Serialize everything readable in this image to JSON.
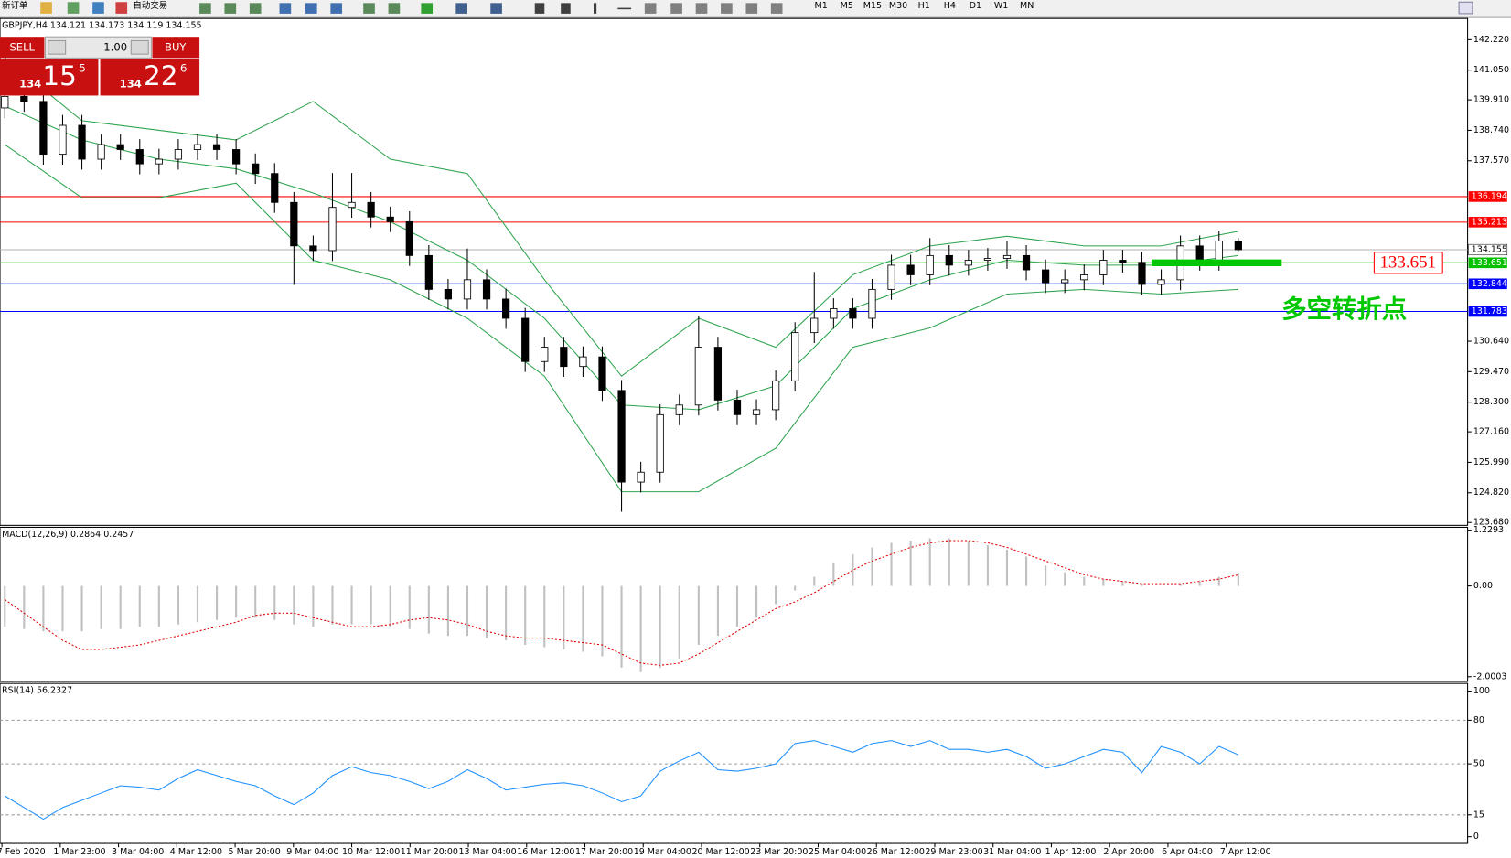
{
  "toolbar": {
    "new_order": "新订单",
    "auto_trading": "自动交易",
    "timeframes": [
      "M1",
      "M5",
      "M15",
      "M30",
      "H1",
      "H4",
      "D1",
      "W1",
      "MN"
    ]
  },
  "trade_panel": {
    "sell": "SELL",
    "buy": "BUY",
    "lot": "1.00",
    "sell_price": [
      "134",
      "15",
      "5"
    ],
    "buy_price": [
      "134",
      "22",
      "6"
    ]
  },
  "chart_data": [
    {
      "type": "candlestick",
      "title": "GBPJPY,H4",
      "ohlc_header": [
        134.121,
        134.173,
        134.119,
        134.155
      ],
      "open": [
        139.6,
        140.04,
        139.85,
        137.82,
        138.93,
        137.63,
        138.19,
        138.0,
        137.45,
        137.63,
        138.0,
        138.19,
        138.0,
        137.45,
        137.08,
        135.97,
        134.3,
        134.12,
        135.78,
        135.97,
        135.41,
        135.23,
        133.93,
        132.63,
        132.26,
        133.0,
        132.26,
        131.52,
        129.86,
        130.41,
        129.67,
        130.04,
        128.75,
        125.23,
        125.61,
        127.82,
        128.19,
        130.41,
        128.38,
        127.82,
        128.01,
        129.12,
        130.97,
        131.52,
        131.89,
        131.52,
        132.63,
        133.56,
        133.19,
        133.93,
        133.56,
        133.75,
        133.82,
        133.93,
        133.38,
        132.89,
        133.0,
        133.19,
        133.75,
        133.67,
        132.82,
        133.0,
        134.3,
        133.75,
        134.49
      ],
      "high": [
        140.44,
        140.44,
        140.25,
        139.33,
        139.33,
        138.59,
        138.59,
        138.4,
        138.03,
        138.4,
        138.59,
        138.59,
        138.4,
        137.85,
        137.48,
        136.37,
        134.7,
        137.1,
        137.1,
        136.37,
        135.81,
        135.63,
        134.33,
        133.03,
        134.2,
        133.4,
        132.66,
        131.92,
        130.81,
        130.81,
        130.44,
        130.44,
        129.15,
        126.01,
        128.22,
        128.59,
        131.6,
        130.81,
        128.78,
        128.41,
        129.52,
        131.37,
        133.3,
        132.29,
        132.29,
        133.03,
        133.96,
        133.96,
        134.6,
        134.33,
        134.15,
        134.22,
        134.5,
        134.33,
        133.78,
        133.4,
        133.59,
        134.15,
        134.15,
        134.07,
        133.4,
        134.7,
        134.7,
        134.89,
        134.6
      ],
      "low": [
        139.2,
        139.45,
        137.42,
        137.42,
        137.23,
        137.23,
        137.6,
        137.05,
        137.05,
        137.23,
        137.6,
        137.6,
        137.05,
        136.68,
        135.57,
        132.8,
        133.72,
        133.72,
        135.38,
        135.01,
        134.83,
        133.53,
        132.23,
        131.86,
        131.86,
        131.86,
        131.12,
        129.46,
        129.46,
        129.27,
        129.27,
        128.35,
        124.09,
        124.83,
        125.21,
        127.42,
        127.79,
        127.98,
        127.42,
        127.42,
        127.61,
        128.72,
        130.57,
        131.12,
        131.12,
        131.12,
        132.23,
        132.79,
        132.79,
        133.16,
        133.16,
        133.35,
        133.42,
        132.98,
        132.49,
        132.49,
        132.6,
        132.79,
        133.27,
        132.42,
        132.42,
        132.6,
        133.35,
        133.35,
        134.1
      ],
      "close": [
        140.04,
        139.85,
        137.82,
        138.93,
        137.63,
        138.19,
        138.0,
        137.45,
        137.63,
        138.0,
        138.19,
        138.0,
        137.45,
        137.08,
        135.97,
        134.3,
        134.12,
        135.78,
        135.97,
        135.41,
        135.23,
        133.93,
        132.63,
        132.26,
        133.0,
        132.26,
        131.52,
        129.86,
        130.41,
        129.67,
        130.04,
        128.75,
        125.23,
        125.61,
        127.82,
        128.19,
        130.41,
        128.38,
        127.82,
        128.01,
        129.12,
        130.97,
        131.52,
        131.89,
        131.52,
        132.63,
        133.56,
        133.19,
        133.93,
        133.56,
        133.75,
        133.82,
        133.93,
        133.38,
        132.89,
        133.0,
        133.19,
        133.75,
        133.67,
        132.82,
        133.0,
        134.3,
        133.75,
        134.49,
        134.155
      ],
      "bands": {
        "color": "#2ea44f",
        "x": [
          0,
          4,
          8,
          12,
          16,
          20,
          24,
          28,
          32,
          36,
          40,
          44,
          48,
          52,
          56,
          60,
          64
        ],
        "upper": [
          141.52,
          139.11,
          138.74,
          138.37,
          139.85,
          137.63,
          137.08,
          133.0,
          129.3,
          131.52,
          130.41,
          133.19,
          134.3,
          134.67,
          134.3,
          134.3,
          134.86
        ],
        "middle": [
          139.67,
          138.37,
          137.63,
          137.26,
          136.33,
          135.23,
          133.75,
          131.52,
          128.19,
          128.01,
          128.93,
          131.89,
          133.0,
          133.75,
          133.56,
          133.56,
          133.93
        ],
        "lower": [
          138.19,
          136.15,
          136.15,
          136.71,
          133.75,
          133.0,
          131.52,
          129.3,
          124.86,
          124.86,
          126.53,
          130.41,
          131.15,
          132.45,
          132.63,
          132.45,
          132.63
        ]
      },
      "levels": [
        {
          "value": 136.194,
          "color": "#ff0000"
        },
        {
          "value": 135.213,
          "color": "#ff0000"
        },
        {
          "value": 133.651,
          "color": "#00c000"
        },
        {
          "value": 132.844,
          "color": "#0000ff"
        },
        {
          "value": 131.783,
          "color": "#0000ff"
        }
      ],
      "current_price": 134.155,
      "annotation": {
        "price_label": 133.651,
        "text": "多空转折点",
        "color": "#00c800"
      },
      "ylim": [
        123.68,
        142.22
      ],
      "yticks": [
        {
          "value": 123.68,
          "label": "123.680"
        },
        {
          "value": 124.82,
          "label": "124.820"
        },
        {
          "value": 125.99,
          "label": "125.990"
        },
        {
          "value": 127.16,
          "label": "127.160"
        },
        {
          "value": 128.3,
          "label": "128.300"
        },
        {
          "value": 129.47,
          "label": "129.470"
        },
        {
          "value": 130.64,
          "label": "130.640"
        },
        {
          "value": 137.57,
          "label": "137.570"
        },
        {
          "value": 138.74,
          "label": "138.740"
        },
        {
          "value": 139.91,
          "label": "139.910"
        },
        {
          "value": 141.05,
          "label": "141.050"
        },
        {
          "value": 142.22,
          "label": "142.220"
        }
      ],
      "x_labels": [
        "7 Feb 2020",
        "1 Mar 23:00",
        "3 Mar 04:00",
        "4 Mar 12:00",
        "5 Mar 20:00",
        "9 Mar 04:00",
        "10 Mar 12:00",
        "11 Mar 20:00",
        "13 Mar 04:00",
        "16 Mar 12:00",
        "17 Mar 20:00",
        "19 Mar 04:00",
        "20 Mar 12:00",
        "23 Mar 20:00",
        "25 Mar 04:00",
        "26 Mar 12:00",
        "29 Mar 23:00",
        "31 Mar 04:00",
        "1 Apr 12:00",
        "2 Apr 20:00",
        "6 Apr 04:00",
        "7 Apr 12:00"
      ]
    },
    {
      "type": "macd",
      "title": "MACD(12,26,9)",
      "readout": [
        0.2864,
        0.2457
      ],
      "series": [
        {
          "color": "#c0c0c0",
          "values": [
            -0.9,
            -0.95,
            -1.0,
            -1.0,
            -1.0,
            -0.95,
            -0.95,
            -0.9,
            -0.9,
            -0.85,
            -0.8,
            -0.75,
            -0.7,
            -0.7,
            -0.75,
            -0.85,
            -0.9,
            -0.85,
            -0.85,
            -0.85,
            -0.9,
            -0.95,
            -1.05,
            -1.1,
            -1.1,
            -1.15,
            -1.2,
            -1.3,
            -1.35,
            -1.4,
            -1.45,
            -1.55,
            -1.8,
            -1.9,
            -1.8,
            -1.6,
            -1.3,
            -1.1,
            -0.9,
            -0.7,
            -0.4,
            -0.1,
            0.2,
            0.5,
            0.7,
            0.85,
            0.95,
            1.0,
            1.05,
            1.05,
            1.0,
            0.9,
            0.8,
            0.65,
            0.45,
            0.3,
            0.2,
            0.15,
            0.1,
            0.05,
            0.0,
            0.05,
            0.1,
            0.2,
            0.2864
          ]
        },
        {
          "color": "#e00000",
          "values": [
            -0.3,
            -0.6,
            -0.9,
            -1.2,
            -1.4,
            -1.4,
            -1.35,
            -1.3,
            -1.2,
            -1.1,
            -1.0,
            -0.9,
            -0.8,
            -0.65,
            -0.6,
            -0.6,
            -0.7,
            -0.8,
            -0.9,
            -0.9,
            -0.85,
            -0.75,
            -0.7,
            -0.75,
            -0.85,
            -1.0,
            -1.1,
            -1.15,
            -1.15,
            -1.2,
            -1.25,
            -1.3,
            -1.5,
            -1.7,
            -1.75,
            -1.7,
            -1.5,
            -1.25,
            -1.0,
            -0.75,
            -0.5,
            -0.35,
            -0.15,
            0.1,
            0.35,
            0.55,
            0.7,
            0.85,
            0.95,
            1.0,
            1.0,
            0.95,
            0.85,
            0.7,
            0.55,
            0.4,
            0.25,
            0.15,
            0.1,
            0.05,
            0.05,
            0.05,
            0.1,
            0.15,
            0.2457
          ]
        }
      ],
      "ylim": [
        -2.0003,
        1.2293
      ],
      "yticks": [
        -2.0003,
        {
          "value": 0,
          "label": "0.00"
        },
        1.2293
      ]
    },
    {
      "type": "line",
      "title": "RSI(14)",
      "readout": 56.2327,
      "color": "#1e90ff",
      "values": [
        28,
        20,
        12,
        20,
        25,
        30,
        35,
        34,
        32,
        40,
        46,
        42,
        38,
        35,
        28,
        22,
        30,
        42,
        48,
        44,
        42,
        38,
        33,
        38,
        46,
        40,
        32,
        34,
        36,
        37,
        35,
        30,
        24,
        28,
        45,
        52,
        58,
        46,
        45,
        47,
        50,
        64,
        66,
        62,
        58,
        64,
        66,
        62,
        66,
        60,
        60,
        58,
        60,
        55,
        47,
        50,
        55,
        60,
        58,
        44,
        62,
        58,
        50,
        62,
        56.2327
      ],
      "ylim": [
        0,
        100
      ],
      "yticks": [
        0,
        15,
        50,
        80,
        100
      ],
      "dashed_grid": [
        15,
        50,
        80
      ]
    }
  ]
}
